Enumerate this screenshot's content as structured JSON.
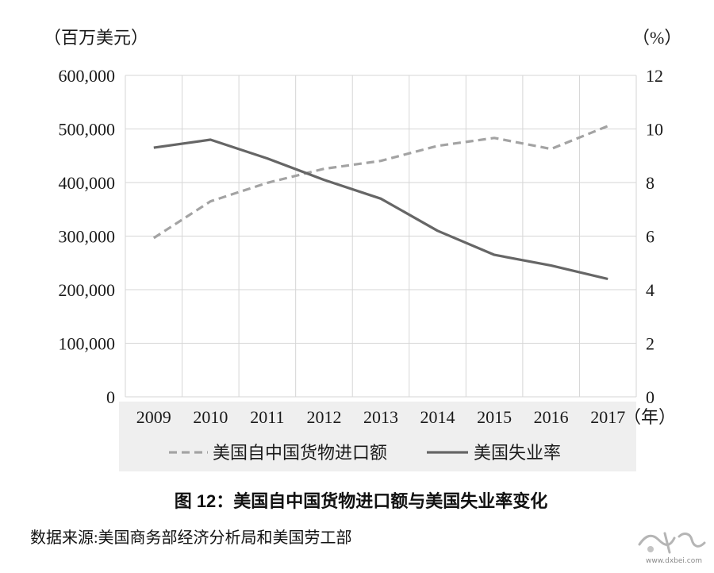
{
  "chart_data": {
    "type": "line",
    "title": "图 12：美国自中国货物进口额与美国失业率变化",
    "categories": [
      "2009",
      "2010",
      "2011",
      "2012",
      "2013",
      "2014",
      "2015",
      "2016",
      "2017"
    ],
    "xlabel": "（年）",
    "y_left": {
      "label": "（百万美元）",
      "range": [
        0,
        600000
      ],
      "ticks": [
        0,
        100000,
        200000,
        300000,
        400000,
        500000,
        600000
      ],
      "tick_labels": [
        "0",
        "100,000",
        "200,000",
        "300,000",
        "400,000",
        "500,000",
        "600,000"
      ]
    },
    "y_right": {
      "label": "（%）",
      "range": [
        0,
        12
      ],
      "ticks": [
        0,
        2,
        4,
        6,
        8,
        10,
        12
      ],
      "tick_labels": [
        "0",
        "2",
        "4",
        "6",
        "8",
        "10",
        "12"
      ]
    },
    "series": [
      {
        "name": "美国自中国货物进口额",
        "axis": "left",
        "line_style": "dashed",
        "color": "#a3a3a3",
        "values": [
          296400,
          364900,
          399400,
          425600,
          440400,
          468500,
          483200,
          462600,
          505500
        ]
      },
      {
        "name": "美国失业率",
        "axis": "right",
        "line_style": "solid",
        "color": "#666666",
        "values": [
          9.3,
          9.6,
          8.9,
          8.1,
          7.4,
          6.2,
          5.3,
          4.9,
          4.4
        ]
      }
    ],
    "grid": true,
    "legend": "bottom"
  },
  "source": "数据来源:美国商务部经济分析局和美国劳工部",
  "watermark": {
    "url": "www.dxbei.com"
  }
}
